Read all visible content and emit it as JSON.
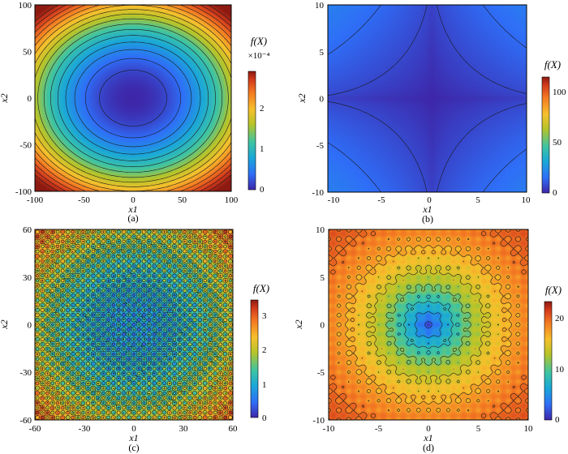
{
  "chart_data": [
    {
      "type": "heatmap",
      "panel_label": "(a)",
      "xlabel": "x1",
      "ylabel": "x2",
      "xlim": [
        -100,
        100
      ],
      "ylim": [
        -100,
        100
      ],
      "x_ticks": [
        "-100",
        "-50",
        "0",
        "50",
        "100"
      ],
      "y_ticks": [
        "-100",
        "-50",
        "0",
        "50",
        "100"
      ],
      "colorbar": {
        "title": "f(X)",
        "multiplier": "×10⁻⁴",
        "range": [
          0,
          2.9
        ],
        "ticks": [
          "0",
          "1",
          "2"
        ]
      },
      "surface": "elliptic bowl, minimum at (0,0)",
      "contours": true
    },
    {
      "type": "heatmap",
      "panel_label": "(b)",
      "xlabel": "x1",
      "ylabel": "x2",
      "xlim": [
        -11,
        10
      ],
      "ylim": [
        -10,
        10
      ],
      "x_ticks": [
        "-10",
        "-5",
        "0",
        "5",
        "10"
      ],
      "y_ticks": [
        "-10",
        "-5",
        "0",
        "5",
        "10"
      ],
      "colorbar": {
        "title": "f(X)",
        "range": [
          0,
          115
        ],
        "ticks": [
          "0",
          "50",
          "100"
        ]
      },
      "surface": "star-shaped valley along axes, minimum at (0,0)",
      "contours": true
    },
    {
      "type": "heatmap",
      "panel_label": "(c)",
      "xlabel": "x1",
      "ylabel": "x2",
      "xlim": [
        -60,
        60
      ],
      "ylim": [
        -60,
        60
      ],
      "x_ticks": [
        "-60",
        "-30",
        "0",
        "30",
        "60"
      ],
      "y_ticks": [
        "-60",
        "-30",
        "0",
        "30",
        "60"
      ],
      "colorbar": {
        "title": "f(X)",
        "range": [
          0,
          3.4
        ],
        "ticks": [
          "0",
          "1",
          "2",
          "3"
        ]
      },
      "surface": "multimodal egg-crate bowl, global minimum at (0,0)",
      "contours": true
    },
    {
      "type": "heatmap",
      "panel_label": "(d)",
      "xlabel": "x1",
      "ylabel": "x2",
      "xlim": [
        -10,
        10
      ],
      "ylim": [
        -10,
        10
      ],
      "x_ticks": [
        "-10",
        "-5",
        "0",
        "5",
        "10"
      ],
      "y_ticks": [
        "-10",
        "-5",
        "0",
        "5",
        "10"
      ],
      "colorbar": {
        "title": "f(X)",
        "range": [
          0,
          23
        ],
        "ticks": [
          "0",
          "10",
          "20"
        ]
      },
      "surface": "multimodal bowl rising to plateau, global minimum at (0,0)",
      "contours": true
    }
  ],
  "colormap": [
    "#3e26a8",
    "#2f6ef7",
    "#1aa7d8",
    "#3ec4a3",
    "#b4c42a",
    "#f6c02c",
    "#f47a23",
    "#d23a1c",
    "#8c1a12"
  ]
}
